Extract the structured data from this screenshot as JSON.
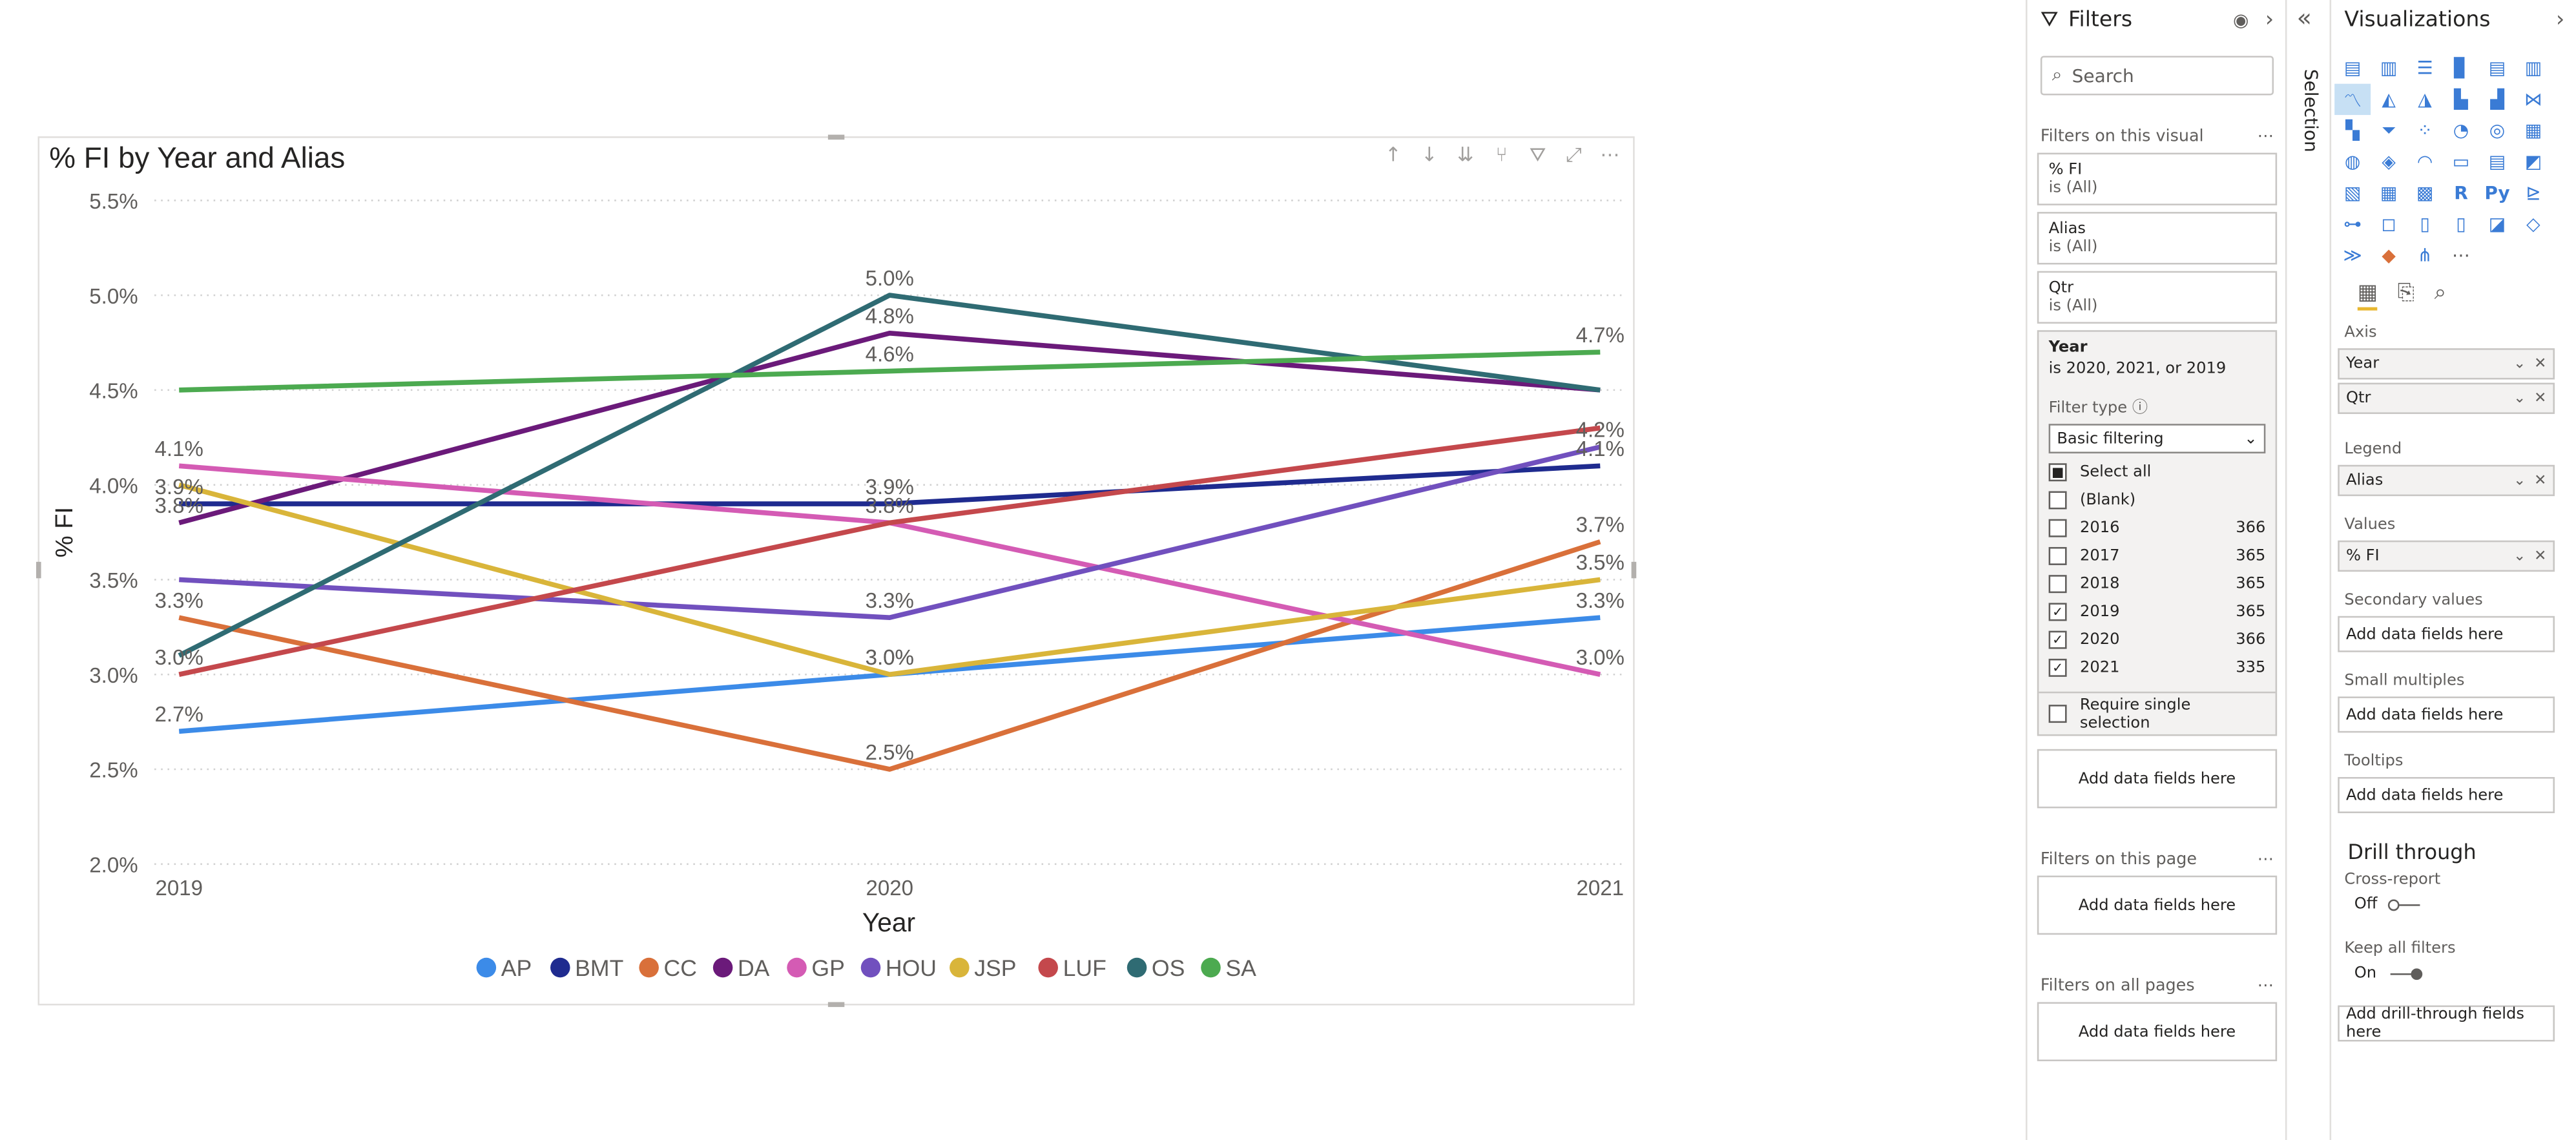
{
  "chart_data": {
    "type": "line",
    "title": "% FI by Year and Alias",
    "xlabel": "Year",
    "ylabel": "% FI",
    "categories": [
      "2019",
      "2020",
      "2021"
    ],
    "ylim": [
      2.0,
      5.5
    ],
    "yticks": [
      "2.0%",
      "2.5%",
      "3.0%",
      "3.5%",
      "4.0%",
      "4.5%",
      "5.0%",
      "5.5%"
    ],
    "grid": true,
    "legend": "bottom",
    "series": [
      {
        "name": "AP",
        "color": "#3C8BE8",
        "values": [
          2.7,
          3.0,
          3.3
        ]
      },
      {
        "name": "BMT",
        "color": "#1F2B8F",
        "values": [
          3.9,
          3.9,
          4.1
        ]
      },
      {
        "name": "CC",
        "color": "#D9703A",
        "values": [
          3.3,
          2.5,
          3.7
        ]
      },
      {
        "name": "DA",
        "color": "#6B1A7A",
        "values": [
          3.8,
          4.8,
          4.5
        ]
      },
      {
        "name": "GP",
        "color": "#D45BB4",
        "values": [
          4.1,
          3.8,
          3.0
        ]
      },
      {
        "name": "HOU",
        "color": "#7150BE",
        "values": [
          3.5,
          3.3,
          4.2
        ]
      },
      {
        "name": "JSP",
        "color": "#D9B53A",
        "values": [
          4.0,
          3.0,
          3.5
        ]
      },
      {
        "name": "LUF",
        "color": "#C4484C",
        "values": [
          3.0,
          3.8,
          4.3
        ]
      },
      {
        "name": "OS",
        "color": "#2F6B73",
        "values": [
          3.1,
          5.0,
          4.5
        ]
      },
      {
        "name": "SA",
        "color": "#4CAA50",
        "values": [
          4.5,
          4.6,
          4.7
        ]
      }
    ],
    "data_labels": [
      {
        "x": "2019",
        "value": 4.1,
        "text": "4.1%"
      },
      {
        "x": "2019",
        "value": 3.9,
        "text": "3.9%"
      },
      {
        "x": "2019",
        "value": 3.8,
        "text": "3.8%"
      },
      {
        "x": "2019",
        "value": 3.3,
        "text": "3.3%"
      },
      {
        "x": "2019",
        "value": 3.0,
        "text": "3.0%"
      },
      {
        "x": "2019",
        "value": 2.7,
        "text": "2.7%"
      },
      {
        "x": "2020",
        "value": 5.0,
        "text": "5.0%"
      },
      {
        "x": "2020",
        "value": 4.8,
        "text": "4.8%"
      },
      {
        "x": "2020",
        "value": 4.6,
        "text": "4.6%"
      },
      {
        "x": "2020",
        "value": 3.8,
        "text": "3.8%"
      },
      {
        "x": "2020",
        "value": 3.9,
        "text": "3.9%"
      },
      {
        "x": "2020",
        "value": 3.3,
        "text": "3.3%"
      },
      {
        "x": "2020",
        "value": 3.0,
        "text": "3.0%"
      },
      {
        "x": "2020",
        "value": 3.0,
        "text": "3.0%"
      },
      {
        "x": "2020",
        "value": 2.5,
        "text": "2.5%"
      },
      {
        "x": "2021",
        "value": 4.7,
        "text": "4.7%"
      },
      {
        "x": "2021",
        "value": 4.2,
        "text": "4.2%"
      },
      {
        "x": "2021",
        "value": 4.1,
        "text": "4.1%"
      },
      {
        "x": "2021",
        "value": 3.7,
        "text": "3.7%"
      },
      {
        "x": "2021",
        "value": 3.5,
        "text": "3.5%"
      },
      {
        "x": "2021",
        "value": 3.3,
        "text": "3.3%"
      },
      {
        "x": "2021",
        "value": 3.0,
        "text": "3.0%"
      }
    ]
  },
  "filters": {
    "title": "Filters",
    "search_placeholder": "Search",
    "on_visual_label": "Filters on this visual",
    "cards": [
      {
        "field": "% FI",
        "state": "is (All)"
      },
      {
        "field": "Alias",
        "state": "is (All)"
      },
      {
        "field": "Qtr",
        "state": "is (All)"
      }
    ],
    "year_card": {
      "field": "Year",
      "state": "is 2020, 2021, or 2019",
      "filter_type_label": "Filter type",
      "filter_type_value": "Basic filtering",
      "options": [
        {
          "label": "Select all",
          "count": "",
          "checked": "partial"
        },
        {
          "label": "(Blank)",
          "count": "",
          "checked": "no"
        },
        {
          "label": "2016",
          "count": "366",
          "checked": "no"
        },
        {
          "label": "2017",
          "count": "365",
          "checked": "no"
        },
        {
          "label": "2018",
          "count": "365",
          "checked": "no"
        },
        {
          "label": "2019",
          "count": "365",
          "checked": "yes"
        },
        {
          "label": "2020",
          "count": "366",
          "checked": "yes"
        },
        {
          "label": "2021",
          "count": "335",
          "checked": "yes"
        }
      ],
      "require_single": "Require single selection"
    },
    "add_fields": "Add data fields here",
    "on_page_label": "Filters on this page",
    "on_all_pages_label": "Filters on all pages"
  },
  "selection": {
    "label": "Selection"
  },
  "viz": {
    "title": "Visualizations",
    "wells": {
      "axis_label": "Axis",
      "axis_items": [
        "Year",
        "Qtr"
      ],
      "legend_label": "Legend",
      "legend_items": [
        "Alias"
      ],
      "values_label": "Values",
      "values_items": [
        "% FI"
      ],
      "secondary_label": "Secondary values",
      "small_multiples_label": "Small multiples",
      "tooltips_label": "Tooltips",
      "add_fields": "Add data fields here"
    },
    "drill": {
      "title": "Drill through",
      "cross_report_label": "Cross-report",
      "cross_report_state": "Off",
      "keep_filters_label": "Keep all filters",
      "keep_filters_state": "On",
      "add_drill": "Add drill-through fields here"
    }
  }
}
